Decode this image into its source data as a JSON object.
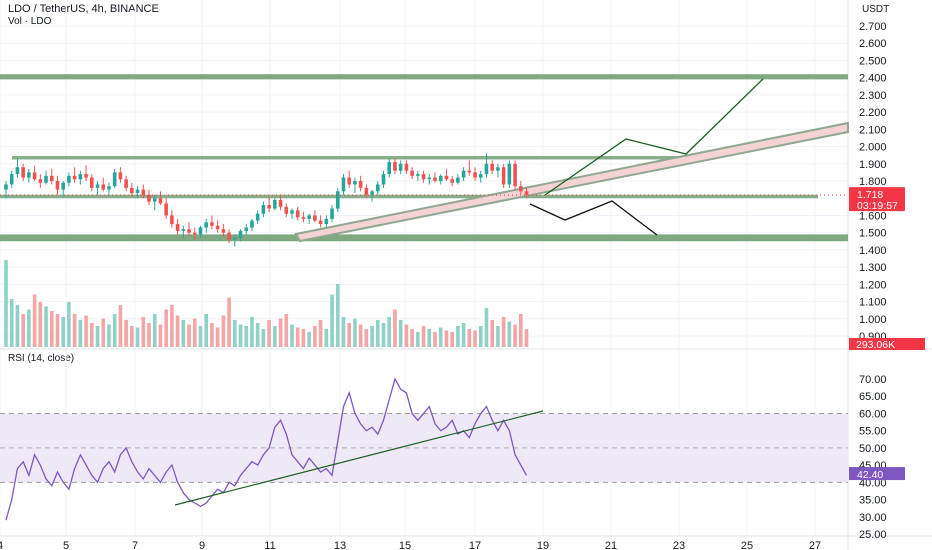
{
  "header": {
    "symbol_line": "LDO / TetherUS, 4h, BINANCE",
    "volume_label": "Vol · LDO",
    "rsi_label": "RSI (14, close)"
  },
  "price_scale": {
    "currency": "USDT",
    "ticks": [
      "2.700",
      "2.600",
      "2.500",
      "2.400",
      "2.300",
      "2.200",
      "2.100",
      "2.000",
      "1.900",
      "1.800",
      "1.700",
      "1.600",
      "1.500",
      "1.400",
      "1.300",
      "1.200",
      "1.100",
      "1.000",
      "0.900"
    ],
    "last_price_badge": "1.718",
    "countdown_badge": "03:19:57",
    "volume_badge": "293.06K",
    "colors": {
      "badge_red": "#f23645",
      "badge_purple": "#7e57c2"
    }
  },
  "rsi_scale": {
    "ticks": [
      "70.00",
      "65.00",
      "60.00",
      "55.00",
      "50.00",
      "45.00",
      "40.00",
      "35.00",
      "30.00",
      "25.00"
    ],
    "value_badge": "42.40",
    "upper_band": 60,
    "lower_band": 40
  },
  "time_axis": {
    "labels": [
      "4",
      "5",
      "7",
      "9",
      "11",
      "13",
      "15",
      "17",
      "19",
      "21",
      "23",
      "25",
      "27"
    ]
  },
  "chart_data": {
    "type": "candlestick",
    "title": "LDO / TetherUS, 4h, BINANCE",
    "y_range": [
      0.85,
      2.78
    ],
    "ohlc": [
      [
        1.75,
        1.8,
        1.7,
        1.78
      ],
      [
        1.78,
        1.86,
        1.76,
        1.84
      ],
      [
        1.84,
        1.93,
        1.82,
        1.88
      ],
      [
        1.88,
        1.9,
        1.8,
        1.82
      ],
      [
        1.82,
        1.87,
        1.79,
        1.85
      ],
      [
        1.85,
        1.89,
        1.8,
        1.81
      ],
      [
        1.81,
        1.84,
        1.76,
        1.79
      ],
      [
        1.79,
        1.86,
        1.78,
        1.83
      ],
      [
        1.83,
        1.87,
        1.78,
        1.8
      ],
      [
        1.8,
        1.83,
        1.72,
        1.75
      ],
      [
        1.75,
        1.8,
        1.71,
        1.79
      ],
      [
        1.79,
        1.85,
        1.77,
        1.83
      ],
      [
        1.83,
        1.88,
        1.79,
        1.81
      ],
      [
        1.81,
        1.86,
        1.78,
        1.84
      ],
      [
        1.84,
        1.89,
        1.8,
        1.82
      ],
      [
        1.82,
        1.84,
        1.74,
        1.76
      ],
      [
        1.76,
        1.8,
        1.72,
        1.78
      ],
      [
        1.78,
        1.82,
        1.74,
        1.75
      ],
      [
        1.75,
        1.79,
        1.72,
        1.77
      ],
      [
        1.77,
        1.87,
        1.76,
        1.85
      ],
      [
        1.85,
        1.88,
        1.79,
        1.81
      ],
      [
        1.81,
        1.83,
        1.74,
        1.76
      ],
      [
        1.76,
        1.79,
        1.71,
        1.73
      ],
      [
        1.73,
        1.77,
        1.7,
        1.75
      ],
      [
        1.75,
        1.78,
        1.7,
        1.72
      ],
      [
        1.72,
        1.75,
        1.66,
        1.68
      ],
      [
        1.68,
        1.72,
        1.63,
        1.7
      ],
      [
        1.7,
        1.74,
        1.66,
        1.67
      ],
      [
        1.67,
        1.7,
        1.58,
        1.6
      ],
      [
        1.6,
        1.63,
        1.53,
        1.55
      ],
      [
        1.55,
        1.58,
        1.49,
        1.51
      ],
      [
        1.51,
        1.54,
        1.47,
        1.52
      ],
      [
        1.52,
        1.56,
        1.48,
        1.5
      ],
      [
        1.5,
        1.53,
        1.46,
        1.49
      ],
      [
        1.49,
        1.54,
        1.47,
        1.53
      ],
      [
        1.53,
        1.58,
        1.5,
        1.56
      ],
      [
        1.56,
        1.6,
        1.52,
        1.54
      ],
      [
        1.54,
        1.57,
        1.5,
        1.52
      ],
      [
        1.52,
        1.55,
        1.48,
        1.5
      ],
      [
        1.5,
        1.52,
        1.44,
        1.46
      ],
      [
        1.46,
        1.49,
        1.42,
        1.47
      ],
      [
        1.47,
        1.52,
        1.45,
        1.51
      ],
      [
        1.51,
        1.55,
        1.49,
        1.53
      ],
      [
        1.53,
        1.58,
        1.51,
        1.57
      ],
      [
        1.57,
        1.63,
        1.55,
        1.61
      ],
      [
        1.61,
        1.68,
        1.59,
        1.66
      ],
      [
        1.66,
        1.71,
        1.62,
        1.64
      ],
      [
        1.64,
        1.7,
        1.63,
        1.69
      ],
      [
        1.69,
        1.72,
        1.63,
        1.65
      ],
      [
        1.65,
        1.67,
        1.59,
        1.61
      ],
      [
        1.61,
        1.64,
        1.58,
        1.63
      ],
      [
        1.63,
        1.65,
        1.57,
        1.59
      ],
      [
        1.59,
        1.62,
        1.56,
        1.58
      ],
      [
        1.58,
        1.61,
        1.55,
        1.6
      ],
      [
        1.6,
        1.63,
        1.56,
        1.57
      ],
      [
        1.57,
        1.6,
        1.53,
        1.55
      ],
      [
        1.55,
        1.6,
        1.53,
        1.58
      ],
      [
        1.58,
        1.66,
        1.56,
        1.64
      ],
      [
        1.64,
        1.76,
        1.62,
        1.74
      ],
      [
        1.74,
        1.84,
        1.72,
        1.82
      ],
      [
        1.82,
        1.86,
        1.76,
        1.78
      ],
      [
        1.78,
        1.82,
        1.73,
        1.8
      ],
      [
        1.8,
        1.83,
        1.74,
        1.76
      ],
      [
        1.76,
        1.78,
        1.7,
        1.72
      ],
      [
        1.72,
        1.75,
        1.68,
        1.74
      ],
      [
        1.74,
        1.8,
        1.72,
        1.78
      ],
      [
        1.78,
        1.86,
        1.76,
        1.84
      ],
      [
        1.84,
        1.93,
        1.82,
        1.91
      ],
      [
        1.91,
        1.93,
        1.84,
        1.86
      ],
      [
        1.86,
        1.92,
        1.84,
        1.9
      ],
      [
        1.9,
        1.92,
        1.84,
        1.86
      ],
      [
        1.86,
        1.88,
        1.81,
        1.83
      ],
      [
        1.83,
        1.86,
        1.8,
        1.84
      ],
      [
        1.84,
        1.86,
        1.79,
        1.81
      ],
      [
        1.81,
        1.84,
        1.78,
        1.82
      ],
      [
        1.82,
        1.85,
        1.79,
        1.8
      ],
      [
        1.8,
        1.84,
        1.78,
        1.83
      ],
      [
        1.83,
        1.87,
        1.8,
        1.81
      ],
      [
        1.81,
        1.83,
        1.77,
        1.79
      ],
      [
        1.79,
        1.84,
        1.78,
        1.82
      ],
      [
        1.82,
        1.88,
        1.8,
        1.86
      ],
      [
        1.86,
        1.92,
        1.83,
        1.85
      ],
      [
        1.85,
        1.88,
        1.8,
        1.82
      ],
      [
        1.82,
        1.86,
        1.79,
        1.84
      ],
      [
        1.84,
        1.96,
        1.82,
        1.9
      ],
      [
        1.9,
        1.92,
        1.84,
        1.86
      ],
      [
        1.86,
        1.9,
        1.82,
        1.88
      ],
      [
        1.88,
        1.9,
        1.76,
        1.78
      ],
      [
        1.78,
        1.92,
        1.76,
        1.9
      ],
      [
        1.9,
        1.92,
        1.75,
        1.77
      ],
      [
        1.77,
        1.8,
        1.72,
        1.74
      ],
      [
        1.74,
        1.76,
        1.7,
        1.72
      ]
    ],
    "volume": [
      0.58,
      0.32,
      0.28,
      0.22,
      0.25,
      0.35,
      0.3,
      0.27,
      0.24,
      0.22,
      0.2,
      0.3,
      0.22,
      0.18,
      0.21,
      0.16,
      0.14,
      0.19,
      0.15,
      0.22,
      0.28,
      0.18,
      0.14,
      0.13,
      0.2,
      0.16,
      0.22,
      0.15,
      0.25,
      0.28,
      0.21,
      0.18,
      0.15,
      0.19,
      0.14,
      0.22,
      0.16,
      0.13,
      0.21,
      0.33,
      0.18,
      0.15,
      0.14,
      0.2,
      0.16,
      0.12,
      0.18,
      0.14,
      0.19,
      0.22,
      0.15,
      0.13,
      0.12,
      0.1,
      0.14,
      0.18,
      0.12,
      0.35,
      0.42,
      0.2,
      0.16,
      0.19,
      0.15,
      0.12,
      0.14,
      0.18,
      0.16,
      0.2,
      0.25,
      0.18,
      0.15,
      0.12,
      0.1,
      0.14,
      0.12,
      0.1,
      0.13,
      0.11,
      0.1,
      0.14,
      0.16,
      0.12,
      0.11,
      0.14,
      0.26,
      0.18,
      0.14,
      0.2,
      0.17,
      0.15,
      0.22,
      0.12
    ],
    "rsi": [
      29,
      35,
      44,
      46,
      42,
      48,
      45,
      41,
      39,
      43,
      40,
      38,
      44,
      48,
      45,
      42,
      40,
      44,
      46,
      43,
      48,
      50,
      46,
      43,
      41,
      44,
      42,
      40,
      43,
      45,
      40,
      37,
      35,
      34,
      33,
      34,
      36,
      38,
      37,
      40,
      39,
      42,
      44,
      46,
      45,
      48,
      50,
      56,
      58,
      54,
      48,
      46,
      44,
      47,
      45,
      43,
      44,
      42,
      52,
      62,
      66,
      60,
      57,
      55,
      56,
      54,
      58,
      64,
      70,
      67,
      66,
      60,
      58,
      60,
      62,
      57,
      55,
      56,
      58,
      54,
      55,
      53,
      57,
      60,
      62,
      58,
      55,
      58,
      55,
      48,
      45,
      42
    ],
    "levels": {
      "resistance_top": [
        2.39,
        2.42
      ],
      "resistance_mid": [
        1.925,
        1.945
      ],
      "support_mid": [
        1.7,
        1.72
      ],
      "support_low": [
        1.45,
        1.49
      ]
    }
  }
}
